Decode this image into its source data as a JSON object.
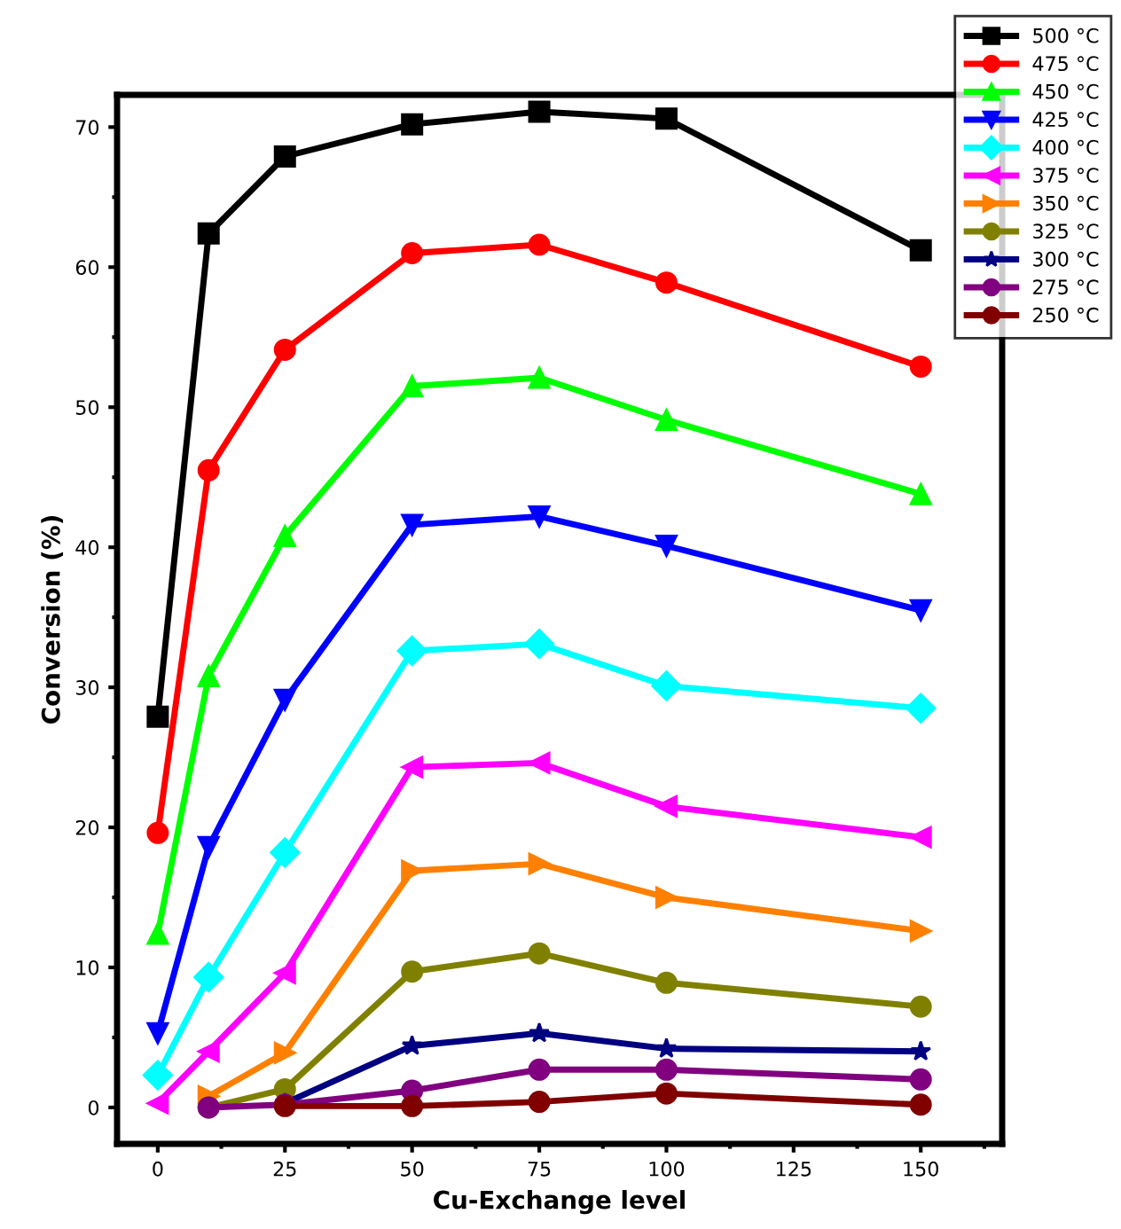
{
  "chart_data": {
    "type": "line",
    "xlabel": "Cu-Exchange level",
    "ylabel": "Conversion (%)",
    "x": [
      0,
      10,
      25,
      50,
      75,
      100,
      150
    ],
    "xlim": [
      -8,
      166
    ],
    "xticks": [
      0,
      25,
      50,
      75,
      100,
      125,
      150
    ],
    "ylim": [
      -2.6,
      72.3
    ],
    "yticks": [
      0,
      10,
      20,
      30,
      40,
      50,
      60,
      70
    ],
    "grid": false,
    "legend": "top right",
    "line_style": "solid",
    "series": [
      {
        "name": "500 °C",
        "color": "#000000",
        "marker": "square",
        "values": [
          27.9,
          62.4,
          67.9,
          70.2,
          71.1,
          70.6,
          61.2
        ]
      },
      {
        "name": "475 °C",
        "color": "#ff0000",
        "marker": "circle",
        "values": [
          19.6,
          45.5,
          54.1,
          61.0,
          61.6,
          58.9,
          52.9
        ]
      },
      {
        "name": "450 °C",
        "color": "#00ff00",
        "marker": "triangle",
        "values": [
          12.4,
          30.8,
          40.8,
          51.5,
          52.1,
          49.1,
          43.8
        ]
      },
      {
        "name": "425 °C",
        "color": "#0000ff",
        "marker": "triangle_down",
        "values": [
          5.3,
          18.6,
          29.1,
          41.6,
          42.2,
          40.1,
          35.5
        ]
      },
      {
        "name": "400 °C",
        "color": "#00ffff",
        "marker": "diamond",
        "values": [
          2.3,
          9.3,
          18.2,
          32.6,
          33.1,
          30.1,
          28.5
        ]
      },
      {
        "name": "375 °C",
        "color": "#ff00ff",
        "marker": "triangle_left",
        "values": [
          0.3,
          4.0,
          9.6,
          24.3,
          24.6,
          21.5,
          19.3
        ]
      },
      {
        "name": "350 °C",
        "color": "#ff8000",
        "marker": "triangle_right",
        "x": [
          10,
          25,
          50,
          75,
          100,
          150
        ],
        "values": [
          0.8,
          3.9,
          16.9,
          17.4,
          15.0,
          12.6
        ]
      },
      {
        "name": "325 °C",
        "color": "#808000",
        "marker": "circle",
        "x": [
          10,
          25,
          50,
          75,
          100,
          150
        ],
        "values": [
          0,
          1.3,
          9.7,
          11.0,
          8.9,
          7.2
        ]
      },
      {
        "name": "300 °C",
        "color": "#000080",
        "marker": "star",
        "x": [
          25,
          50,
          75,
          100,
          150
        ],
        "values": [
          0.3,
          4.4,
          5.3,
          4.2,
          4.0
        ]
      },
      {
        "name": "275 °C",
        "color": "#800080",
        "marker": "circle",
        "x": [
          10,
          25,
          50,
          75,
          100,
          150
        ],
        "values": [
          0,
          0.2,
          1.2,
          2.7,
          2.7,
          2.0
        ]
      },
      {
        "name": "250 °C",
        "color": "#800000",
        "marker": "circle",
        "x": [
          25,
          50,
          75,
          100,
          150
        ],
        "values": [
          0.1,
          0.1,
          0.4,
          1.0,
          0.2
        ]
      }
    ]
  }
}
